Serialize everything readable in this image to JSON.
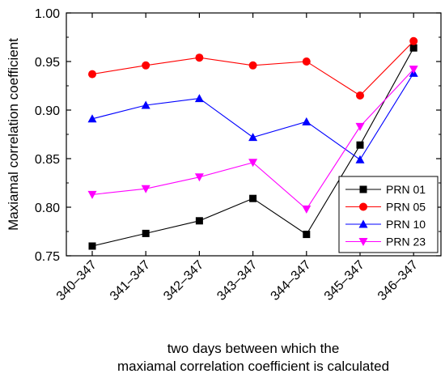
{
  "chart_data": {
    "type": "line",
    "categories": [
      "340–347",
      "341–347",
      "342–347",
      "343–347",
      "344–347",
      "345–347",
      "346–347"
    ],
    "xlabel": [
      "two days between which  the",
      "maxiamal correlation coefficient is calculated"
    ],
    "ylabel": "Maxiamal correlation coefficient",
    "ylim": [
      0.75,
      1.0
    ],
    "yticks": [
      0.75,
      0.8,
      0.85,
      0.9,
      0.95,
      1.0
    ],
    "ytick_labels": [
      "0.75",
      "0.80",
      "0.85",
      "0.90",
      "0.95",
      "1.00"
    ],
    "grid": false,
    "legend_position": "bottom-right",
    "series": [
      {
        "name": "PRN 01",
        "values": [
          0.76,
          0.773,
          0.786,
          0.809,
          0.772,
          0.864,
          0.964
        ],
        "color": "#000000",
        "marker": "square"
      },
      {
        "name": "PRN 05",
        "values": [
          0.937,
          0.946,
          0.954,
          0.946,
          0.95,
          0.915,
          0.971
        ],
        "color": "#ff0000",
        "marker": "circle"
      },
      {
        "name": "PRN 10",
        "values": [
          0.891,
          0.905,
          0.912,
          0.872,
          0.888,
          0.849,
          0.938
        ],
        "color": "#0000ff",
        "marker": "triangle-up"
      },
      {
        "name": "PRN 23",
        "values": [
          0.813,
          0.819,
          0.831,
          0.846,
          0.798,
          0.883,
          0.942
        ],
        "color": "#ff00ff",
        "marker": "triangle-down"
      }
    ]
  }
}
